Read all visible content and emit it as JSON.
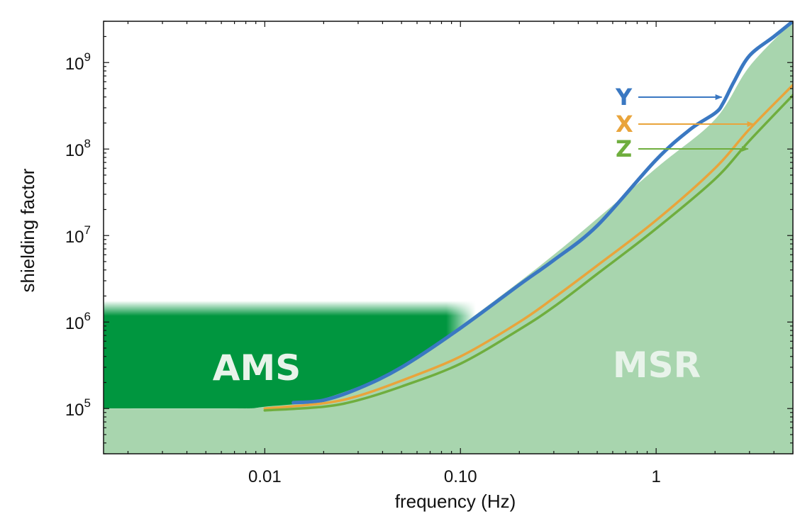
{
  "chart_data": {
    "type": "line",
    "xscale": "log",
    "yscale": "log",
    "xlim": [
      0.0015,
      5
    ],
    "ylim": [
      30000,
      3000000000
    ],
    "xlabel": "frequency (Hz)",
    "ylabel": "shielding factor",
    "x_ticks": [
      {
        "value": 0.01,
        "label": "0.01"
      },
      {
        "value": 0.1,
        "label": "0.10"
      },
      {
        "value": 1,
        "label": "1"
      }
    ],
    "y_ticks": [
      {
        "value": 100000,
        "base": "10",
        "exp": "5"
      },
      {
        "value": 1000000,
        "base": "10",
        "exp": "6"
      },
      {
        "value": 10000000,
        "base": "10",
        "exp": "7"
      },
      {
        "value": 100000000,
        "base": "10",
        "exp": "8"
      },
      {
        "value": 1000000000,
        "base": "10",
        "exp": "9"
      }
    ],
    "regions": [
      {
        "name": "AMS",
        "label": "AMS",
        "color": "#00963f",
        "x_end": 0.12,
        "y_low": 100000,
        "y_high": 1100000
      },
      {
        "name": "MSR",
        "label": "MSR",
        "color": "#a8d5ae"
      }
    ],
    "msr_envelope": {
      "x": [
        0.0015,
        0.007,
        0.01,
        0.02,
        0.05,
        0.1,
        0.3,
        1,
        2,
        3,
        5
      ],
      "y": [
        100000,
        100000,
        105000,
        130000,
        300000,
        900000,
        6000000,
        60000000,
        220000000,
        900000000,
        3000000000
      ]
    },
    "series": [
      {
        "name": "Y",
        "label": "Y",
        "color": "#3a78c2",
        "x": [
          0.014,
          0.02,
          0.03,
          0.05,
          0.1,
          0.2,
          0.3,
          0.5,
          1,
          1.5,
          2,
          2.2,
          2.5,
          3,
          4,
          5
        ],
        "y": [
          117000,
          125000,
          170000,
          300000,
          850000,
          2700000,
          5200000,
          13000000,
          75000000,
          170000000,
          260000000,
          340000000,
          600000000,
          1200000000,
          2000000000,
          3000000000
        ]
      },
      {
        "name": "X",
        "label": "X",
        "color": "#e9a43b",
        "x": [
          0.01,
          0.02,
          0.03,
          0.05,
          0.1,
          0.2,
          0.3,
          0.5,
          1,
          2,
          3,
          5
        ],
        "y": [
          100000,
          115000,
          140000,
          210000,
          400000,
          1000000,
          1900000,
          4500000,
          15000000,
          60000000,
          170000000,
          550000000
        ]
      },
      {
        "name": "Z",
        "label": "Z",
        "color": "#6fae3e",
        "x": [
          0.01,
          0.02,
          0.03,
          0.05,
          0.1,
          0.2,
          0.3,
          0.5,
          1,
          2,
          3,
          5
        ],
        "y": [
          95000,
          105000,
          125000,
          180000,
          330000,
          820000,
          1500000,
          3600000,
          12000000,
          45000000,
          125000000,
          420000000
        ]
      }
    ],
    "annotations": [
      {
        "series": "Y",
        "label": "Y",
        "arrow_to_x": 2.2,
        "arrow_to_y": 340000000
      },
      {
        "series": "X",
        "label": "X",
        "arrow_to_x": 3.2,
        "arrow_to_y": 170000000
      },
      {
        "series": "Z",
        "label": "Z",
        "arrow_to_x": 3.0,
        "arrow_to_y": 100000000
      }
    ]
  }
}
